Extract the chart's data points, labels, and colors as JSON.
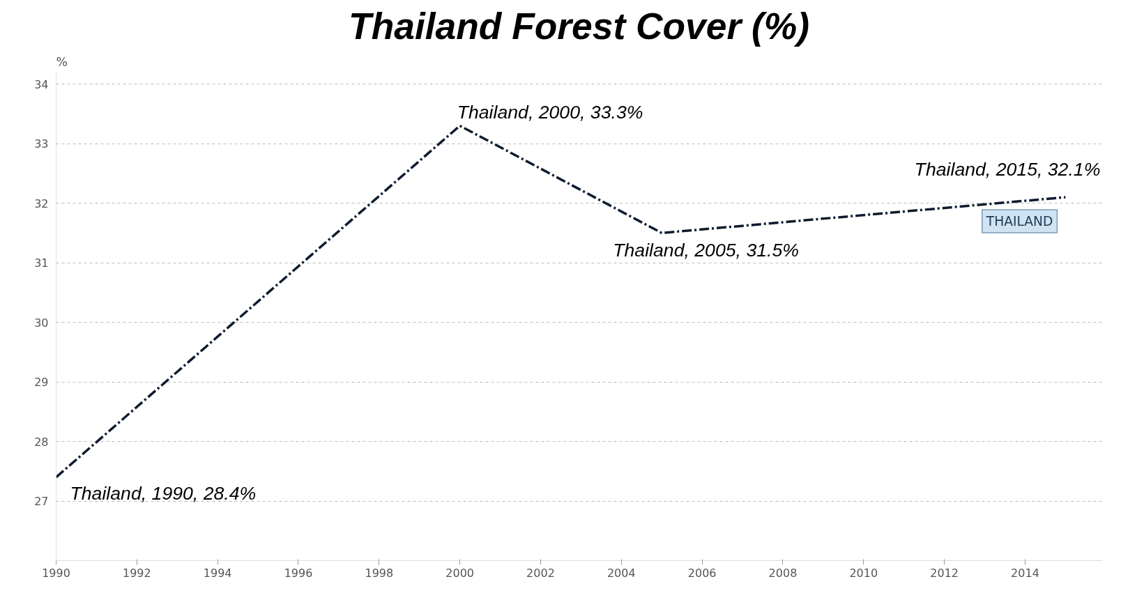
{
  "chart_data": {
    "type": "line",
    "title": "Thailand Forest Cover (%)",
    "ylabel": "%",
    "x": [
      1990,
      2000,
      2005,
      2015
    ],
    "series": [
      {
        "name": "THAILAND",
        "color": "#0d1b2e",
        "values": [
          27.4,
          33.3,
          31.5,
          32.1
        ]
      }
    ],
    "xlim": [
      1990,
      2015.9
    ],
    "ylim": [
      26.0,
      34.2
    ],
    "xticks": [
      1990,
      1992,
      1994,
      1996,
      1998,
      2000,
      2002,
      2004,
      2006,
      2008,
      2010,
      2012,
      2014
    ],
    "yticks": [
      27,
      28,
      29,
      30,
      31,
      32,
      33,
      34
    ],
    "grid": "y",
    "line_style": "dashed",
    "marker": "none",
    "annotations": [
      {
        "text": "Thailand, 1990, 28.4%",
        "x": 1990,
        "y": 27.4
      },
      {
        "text": "Thailand, 2000, 33.3%",
        "x": 2000,
        "y": 33.3
      },
      {
        "text": "Thailand, 2005, 31.5%",
        "x": 2005,
        "y": 31.5
      },
      {
        "text": "Thailand, 2015, 32.1%",
        "x": 2015,
        "y": 32.1
      }
    ]
  }
}
